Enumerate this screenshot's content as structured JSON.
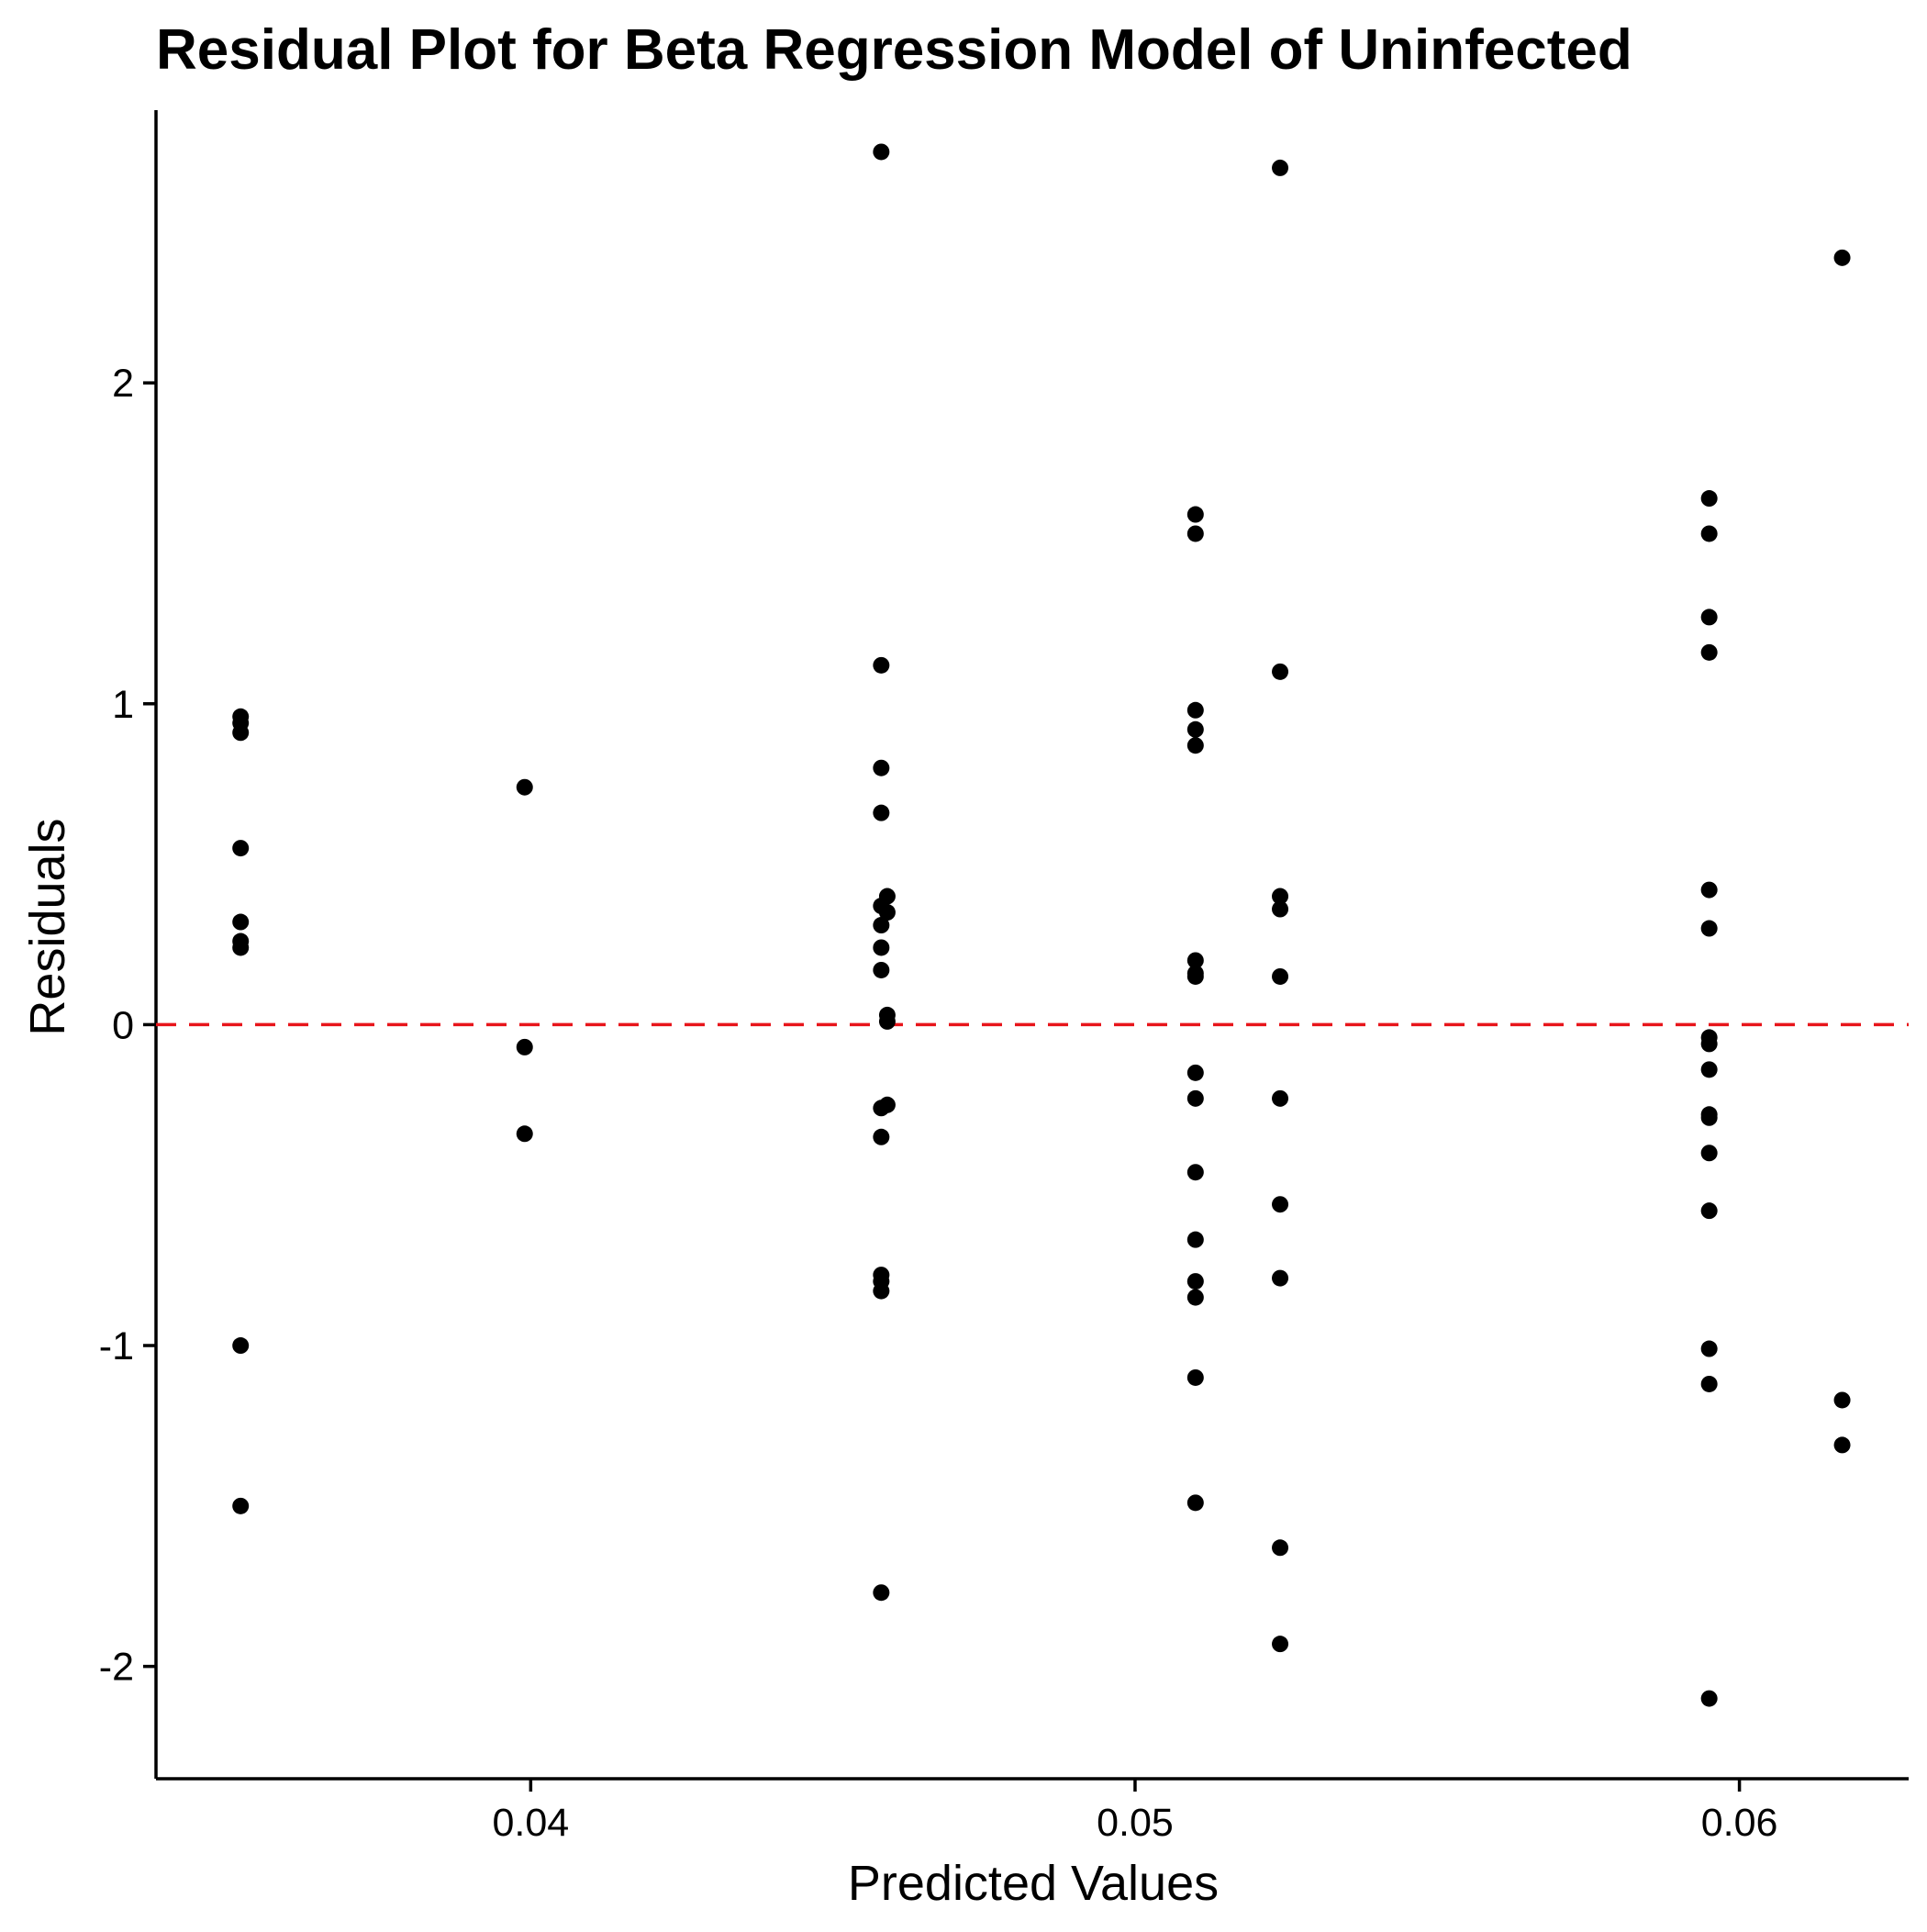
{
  "chart_data": {
    "type": "scatter",
    "title": "Residual Plot for Beta Regression Model of Uninfected",
    "xlabel": "Predicted Values",
    "ylabel": "Residuals",
    "xlim": [
      0.0338,
      0.0628
    ],
    "ylim": [
      -2.35,
      2.85
    ],
    "x_ticks": [
      {
        "value": 0.04,
        "label": "0.04"
      },
      {
        "value": 0.05,
        "label": "0.05"
      },
      {
        "value": 0.06,
        "label": "0.06"
      }
    ],
    "y_ticks": [
      {
        "value": -2,
        "label": "-2"
      },
      {
        "value": -1,
        "label": "-1"
      },
      {
        "value": 0,
        "label": "0"
      },
      {
        "value": 1,
        "label": "1"
      },
      {
        "value": 2,
        "label": "2"
      }
    ],
    "grid": false,
    "legend": "none",
    "reference_line": {
      "y": 0,
      "style": "dashed",
      "color": "#e8151b"
    },
    "point_color": "#000000",
    "points": [
      {
        "x": 0.0352,
        "y": 0.96
      },
      {
        "x": 0.0352,
        "y": 0.94
      },
      {
        "x": 0.0352,
        "y": 0.91
      },
      {
        "x": 0.0352,
        "y": 0.55
      },
      {
        "x": 0.0352,
        "y": 0.32
      },
      {
        "x": 0.0352,
        "y": 0.26
      },
      {
        "x": 0.0352,
        "y": 0.24
      },
      {
        "x": 0.0352,
        "y": -1.0
      },
      {
        "x": 0.0352,
        "y": -1.5
      },
      {
        "x": 0.0399,
        "y": 0.74
      },
      {
        "x": 0.0399,
        "y": -0.07
      },
      {
        "x": 0.0399,
        "y": -0.34
      },
      {
        "x": 0.0458,
        "y": 2.72
      },
      {
        "x": 0.0458,
        "y": 1.12
      },
      {
        "x": 0.0458,
        "y": 0.8
      },
      {
        "x": 0.0458,
        "y": 0.66
      },
      {
        "x": 0.0459,
        "y": 0.4
      },
      {
        "x": 0.0458,
        "y": 0.37
      },
      {
        "x": 0.0459,
        "y": 0.35
      },
      {
        "x": 0.0458,
        "y": 0.31
      },
      {
        "x": 0.0458,
        "y": 0.24
      },
      {
        "x": 0.0458,
        "y": 0.17
      },
      {
        "x": 0.0459,
        "y": 0.03
      },
      {
        "x": 0.0459,
        "y": 0.01
      },
      {
        "x": 0.0459,
        "y": -0.25
      },
      {
        "x": 0.0458,
        "y": -0.26
      },
      {
        "x": 0.0458,
        "y": -0.35
      },
      {
        "x": 0.0458,
        "y": -0.78
      },
      {
        "x": 0.0458,
        "y": -0.8
      },
      {
        "x": 0.0458,
        "y": -0.83
      },
      {
        "x": 0.0458,
        "y": -1.77
      },
      {
        "x": 0.051,
        "y": 1.59
      },
      {
        "x": 0.051,
        "y": 1.53
      },
      {
        "x": 0.051,
        "y": 0.98
      },
      {
        "x": 0.051,
        "y": 0.92
      },
      {
        "x": 0.051,
        "y": 0.87
      },
      {
        "x": 0.051,
        "y": 0.2
      },
      {
        "x": 0.051,
        "y": 0.16
      },
      {
        "x": 0.051,
        "y": 0.15
      },
      {
        "x": 0.051,
        "y": -0.15
      },
      {
        "x": 0.051,
        "y": -0.23
      },
      {
        "x": 0.051,
        "y": -0.46
      },
      {
        "x": 0.051,
        "y": -0.67
      },
      {
        "x": 0.051,
        "y": -0.8
      },
      {
        "x": 0.051,
        "y": -0.85
      },
      {
        "x": 0.051,
        "y": -1.1
      },
      {
        "x": 0.051,
        "y": -1.49
      },
      {
        "x": 0.0524,
        "y": 2.67
      },
      {
        "x": 0.0524,
        "y": 1.1
      },
      {
        "x": 0.0524,
        "y": 0.4
      },
      {
        "x": 0.0524,
        "y": 0.36
      },
      {
        "x": 0.0524,
        "y": 0.15
      },
      {
        "x": 0.0524,
        "y": -0.23
      },
      {
        "x": 0.0524,
        "y": -0.56
      },
      {
        "x": 0.0524,
        "y": -0.79
      },
      {
        "x": 0.0524,
        "y": -1.63
      },
      {
        "x": 0.0524,
        "y": -1.93
      },
      {
        "x": 0.0595,
        "y": 1.64
      },
      {
        "x": 0.0595,
        "y": 1.53
      },
      {
        "x": 0.0595,
        "y": 1.27
      },
      {
        "x": 0.0595,
        "y": 1.16
      },
      {
        "x": 0.0595,
        "y": 0.42
      },
      {
        "x": 0.0595,
        "y": 0.3
      },
      {
        "x": 0.0595,
        "y": -0.04
      },
      {
        "x": 0.0595,
        "y": -0.06
      },
      {
        "x": 0.0595,
        "y": -0.14
      },
      {
        "x": 0.0595,
        "y": -0.28
      },
      {
        "x": 0.0595,
        "y": -0.29
      },
      {
        "x": 0.0595,
        "y": -0.4
      },
      {
        "x": 0.0595,
        "y": -0.58
      },
      {
        "x": 0.0595,
        "y": -1.01
      },
      {
        "x": 0.0595,
        "y": -1.12
      },
      {
        "x": 0.0595,
        "y": -2.1
      },
      {
        "x": 0.0617,
        "y": 2.39
      },
      {
        "x": 0.0617,
        "y": -1.17
      },
      {
        "x": 0.0617,
        "y": -1.31
      }
    ]
  }
}
